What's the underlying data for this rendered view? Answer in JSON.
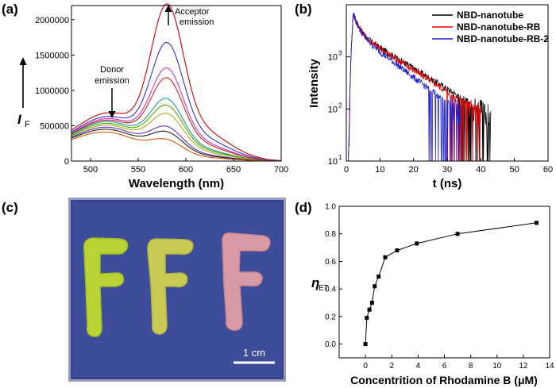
{
  "panel_labels": {
    "a": "(a)",
    "b": "(b)",
    "c": "(c)",
    "d": "(d)"
  },
  "photo": {
    "scale_bar_label": "1 cm",
    "letters": [
      "F",
      "F",
      "F"
    ],
    "background_color": "#3e4d9a",
    "letter_colors": [
      "#b9d334",
      "#c8cb52",
      "#d89aa4"
    ]
  },
  "chart_data": [
    {
      "type": "line",
      "panel": "a",
      "title": "",
      "xlabel": "Wavelength (nm)",
      "ylabel_main": "I",
      "ylabel_sub": "F",
      "xlim": [
        480,
        700
      ],
      "ylim": [
        0,
        2200000
      ],
      "xticks": [
        500,
        550,
        600,
        650,
        700
      ],
      "yticks": [
        0,
        500000,
        1000000,
        1500000,
        2000000
      ],
      "ytick_labels": [
        "0",
        "500000",
        "1000000",
        "1500000",
        "2000000"
      ],
      "annotations": [
        {
          "id": "donor",
          "lines": [
            "Donor",
            "emission"
          ]
        },
        {
          "id": "acceptor",
          "lines": [
            "Acceptor",
            "emission"
          ]
        }
      ],
      "series": [
        {
          "name": "s1",
          "color": "#cc0000",
          "donor": 600000,
          "acceptor": 1880000
        },
        {
          "name": "s2",
          "color": "#3333cc",
          "donor": 550000,
          "acceptor": 1400000
        },
        {
          "name": "s3",
          "color": "#cc33cc",
          "donor": 520000,
          "acceptor": 1080000
        },
        {
          "name": "s4",
          "color": "#cc2222",
          "donor": 500000,
          "acceptor": 960000
        },
        {
          "name": "s5",
          "color": "#1a9a9a",
          "donor": 480000,
          "acceptor": 700000
        },
        {
          "name": "s6",
          "color": "#55aa00",
          "donor": 455000,
          "acceptor": 620000
        },
        {
          "name": "s7",
          "color": "#aaaa22",
          "donor": 430000,
          "acceptor": 520000
        },
        {
          "name": "s8",
          "color": "#6633bb",
          "donor": 400000,
          "acceptor": 360000
        },
        {
          "name": "s9",
          "color": "#222222",
          "donor": 370000,
          "acceptor": 300000
        },
        {
          "name": "s10",
          "color": "#dd5500",
          "donor": 330000,
          "acceptor": 210000
        }
      ]
    },
    {
      "type": "line",
      "panel": "b",
      "title": "",
      "xlabel": "t (ns)",
      "ylabel": "Intensity",
      "xlim": [
        0,
        60
      ],
      "ylim_log": [
        10,
        10000
      ],
      "xticks": [
        0,
        10,
        20,
        30,
        40,
        50,
        60
      ],
      "yticks_base": "10",
      "yticks_exp": [
        "1",
        "2",
        "3"
      ],
      "yticks_exp_values": [
        1,
        2,
        3
      ],
      "series": [
        {
          "name": "NBD-nanotube",
          "color": "#000000",
          "tail_end": 43,
          "decay": 0.165
        },
        {
          "name": "NBD-nanotube-RB",
          "color": "#ee0000",
          "tail_end": 40,
          "decay": 0.172
        },
        {
          "name": "NBD-nanotube-RB-2",
          "color": "#2222cc",
          "tail_end": 34,
          "decay": 0.205
        }
      ]
    },
    {
      "type": "line",
      "panel": "d",
      "title": "",
      "xlabel": "Concentrition of Rhodamine B (μM)",
      "ylabel_main": "η",
      "ylabel_sub": "ET",
      "xlim": [
        -2,
        14
      ],
      "ylim": [
        -0.1,
        1.0
      ],
      "xticks": [
        0,
        2,
        4,
        6,
        8,
        10,
        12,
        14
      ],
      "yticks": [
        0.0,
        0.2,
        0.4,
        0.6,
        0.8,
        1.0
      ],
      "ytick_labels": [
        "0.0",
        "0.2",
        "0.4",
        "0.6",
        "0.8",
        "1.0"
      ],
      "x": [
        0,
        0.1,
        0.3,
        0.5,
        0.7,
        1.0,
        1.5,
        2.4,
        3.9,
        7.0,
        13.0
      ],
      "y": [
        0.0,
        0.19,
        0.25,
        0.3,
        0.42,
        0.49,
        0.63,
        0.68,
        0.73,
        0.8,
        0.88
      ]
    }
  ]
}
